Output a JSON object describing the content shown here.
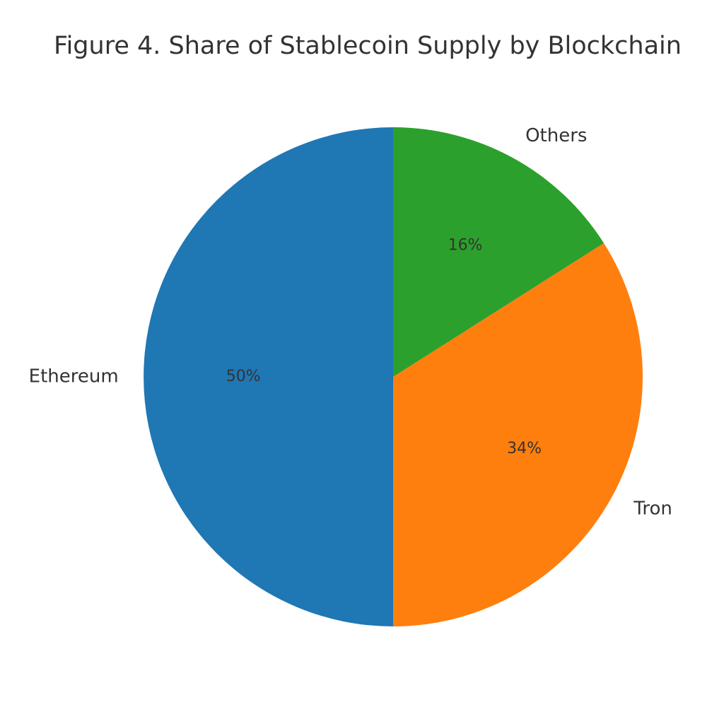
{
  "chart_data": {
    "type": "pie",
    "title": "Figure 4. Share of Stablecoin Supply by Blockchain",
    "categories": [
      "Ethereum",
      "Tron",
      "Others"
    ],
    "values": [
      50,
      34,
      16
    ],
    "value_labels": [
      "50%",
      "34%",
      "16%"
    ],
    "colors": [
      "#1f77b4",
      "#ff7f0e",
      "#2ca02c"
    ]
  }
}
